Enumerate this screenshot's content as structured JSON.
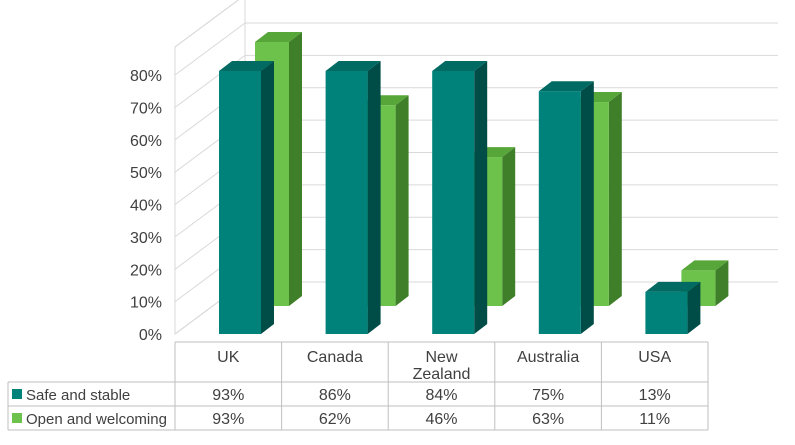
{
  "chart_data": {
    "type": "bar",
    "categories": [
      "UK",
      "Canada",
      "New Zealand",
      "Australia",
      "USA"
    ],
    "category_lines": [
      [
        "UK"
      ],
      [
        "Canada"
      ],
      [
        "New",
        "Zealand"
      ],
      [
        "Australia"
      ],
      [
        "USA"
      ]
    ],
    "series": [
      {
        "name": "Safe and stable",
        "values": [
          93,
          86,
          84,
          75,
          13
        ],
        "value_labels": [
          "93%",
          "86%",
          "84%",
          "75%",
          "13%"
        ],
        "color": "#00827A",
        "side_color": "#004D48",
        "top_color": "#006A63"
      },
      {
        "name": "Open and welcoming",
        "values": [
          93,
          62,
          46,
          63,
          11
        ],
        "value_labels": [
          "93%",
          "62%",
          "46%",
          "63%",
          "11%"
        ],
        "color": "#6CC24A",
        "side_color": "#3F7F2A",
        "top_color": "#57A63A"
      }
    ],
    "ylim": [
      0,
      80
    ],
    "y_ticks": [
      0,
      10,
      20,
      30,
      40,
      50,
      60,
      70,
      80
    ],
    "y_tick_labels": [
      "0%",
      "10%",
      "20%",
      "30%",
      "40%",
      "50%",
      "60%",
      "70%",
      "80%"
    ],
    "grid": true,
    "legend": "data table below chart",
    "style": "3d clustered column with data table"
  }
}
